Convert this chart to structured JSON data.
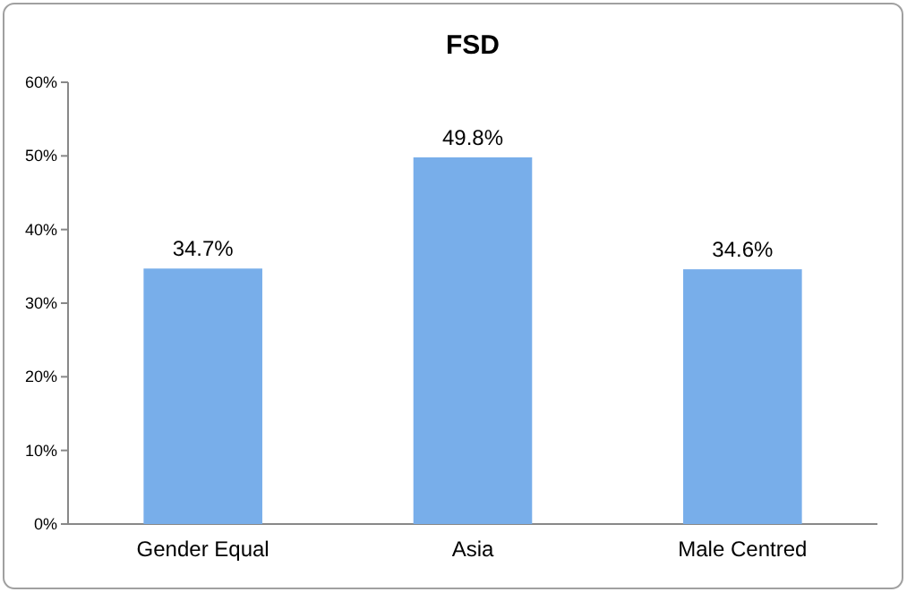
{
  "chart_data": {
    "type": "bar",
    "title": "FSD",
    "categories": [
      "Gender Equal",
      "Asia",
      "Male Centred"
    ],
    "values": [
      34.7,
      49.8,
      34.6
    ],
    "color": "#78aeea",
    "value_labels": [
      "34.7%",
      "49.8%",
      "34.6%"
    ],
    "ylim": [
      0,
      60
    ],
    "yticks": [
      {
        "value": 0,
        "label": "0%"
      },
      {
        "value": 10,
        "label": "10%"
      },
      {
        "value": 20,
        "label": "20%"
      },
      {
        "value": 30,
        "label": "30%"
      },
      {
        "value": 40,
        "label": "40%"
      },
      {
        "value": 50,
        "label": "50%"
      },
      {
        "value": 60,
        "label": "60%"
      }
    ],
    "grid": false
  }
}
